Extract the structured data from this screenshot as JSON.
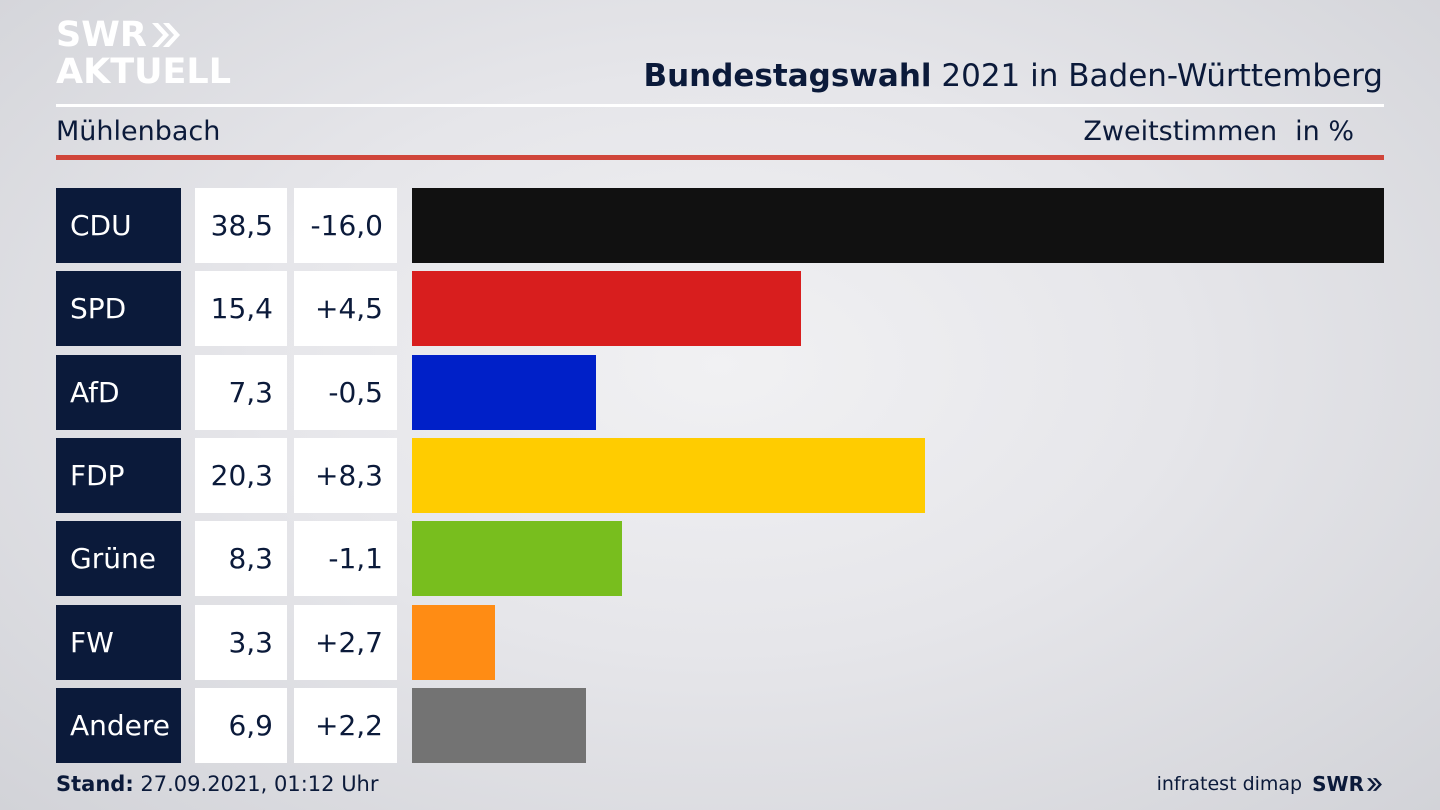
{
  "logo": {
    "line1": "SWR",
    "line2": "AKTUELL"
  },
  "header": {
    "title_bold": "Bundestagswahl",
    "title_rest": "2021 in Baden-Württemberg",
    "subtitle": "Mühlenbach",
    "measure_label": "Zweitstimmen",
    "measure_unit": "in %"
  },
  "chart_data": {
    "type": "bar",
    "orientation": "horizontal",
    "categories": [
      "CDU",
      "SPD",
      "AfD",
      "FDP",
      "Grüne",
      "FW",
      "Andere"
    ],
    "values": [
      38.5,
      15.4,
      7.3,
      20.3,
      8.3,
      3.3,
      6.9
    ],
    "value_labels": [
      "38,5",
      "15,4",
      "7,3",
      "20,3",
      "8,3",
      "3,3",
      "6,9"
    ],
    "diffs": [
      -16.0,
      4.5,
      -0.5,
      8.3,
      -1.1,
      2.7,
      2.2
    ],
    "diff_labels": [
      "-16,0",
      "+4,5",
      "-0,5",
      "+8,3",
      "-1,1",
      "+2,7",
      "+2,2"
    ],
    "colors": [
      "#111111",
      "#d81e1e",
      "#0020c8",
      "#ffcc00",
      "#78be1e",
      "#ff8c14",
      "#737373"
    ],
    "xlim": [
      0,
      38.5
    ],
    "grid": false,
    "legend": "none"
  },
  "footer": {
    "stand_label": "Stand:",
    "stand_value": "27.09.2021, 01:12 Uhr",
    "source": "infratest dimap",
    "brand": "SWR"
  }
}
